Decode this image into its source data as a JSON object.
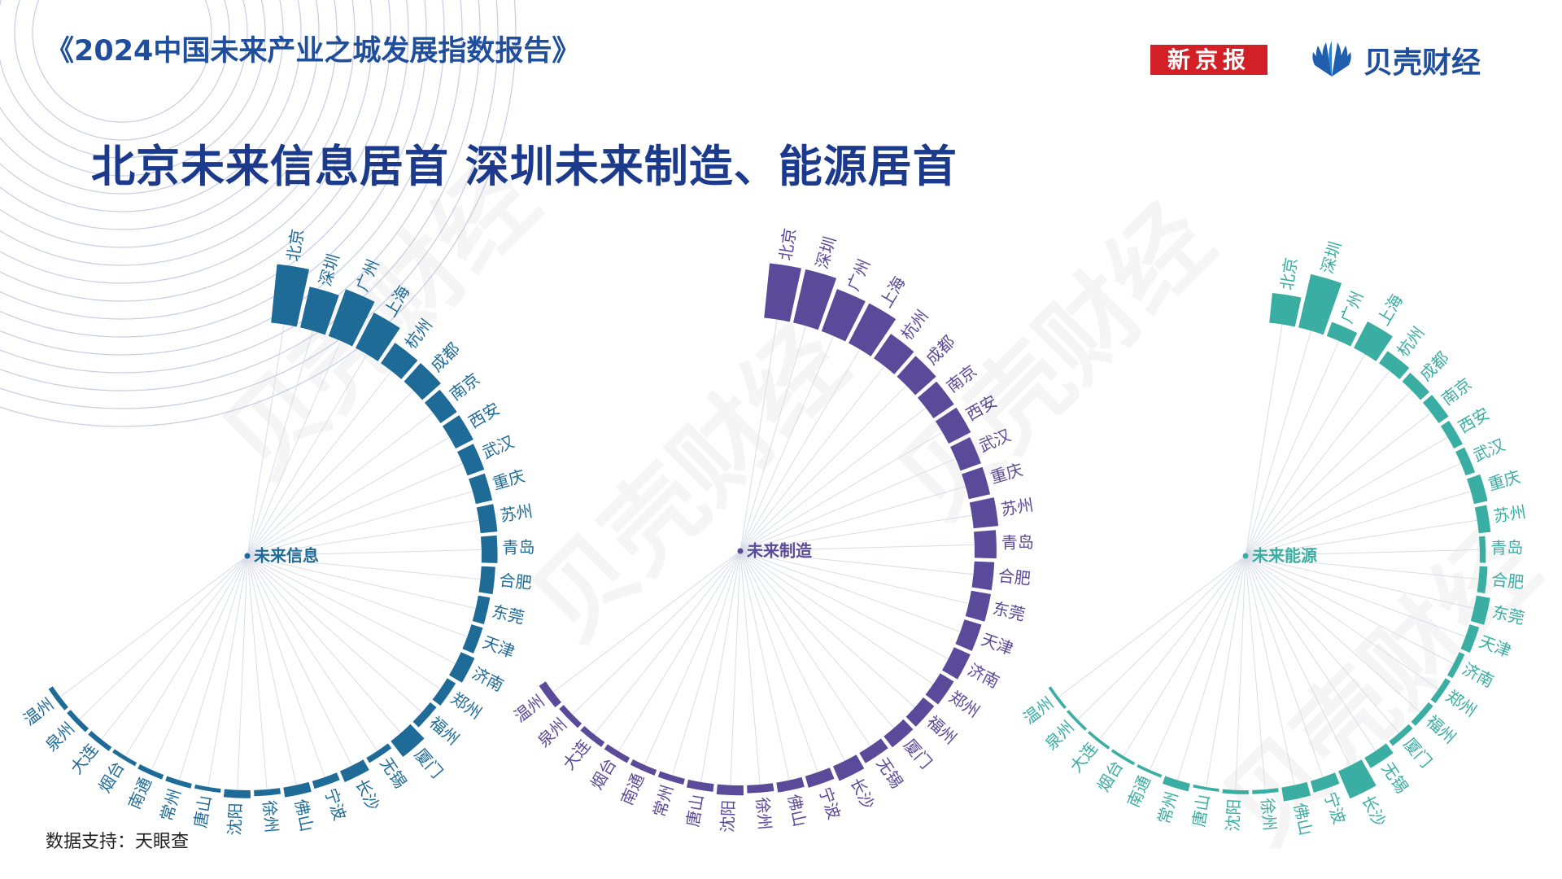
{
  "header": {
    "report_title": "《2024中国未来产业之城发展指数报告》",
    "headline": "北京未来信息居首 深圳未来制造、能源居首",
    "logo_xjb": "新京报",
    "logo_bk": "贝壳财经"
  },
  "footer": {
    "source": "数据支持：天眼查"
  },
  "watermark": "贝壳财经",
  "colors": {
    "info": "#1f6b98",
    "manufacturing": "#5b4a99",
    "energy": "#3aaea3",
    "title": "#1b3a8c",
    "xjb_red": "#d32027"
  },
  "chart_data": [
    {
      "type": "radial-bar",
      "title": "未来信息",
      "color": "#1f6b98",
      "categories": [
        "北京",
        "深圳",
        "广州",
        "上海",
        "杭州",
        "成都",
        "南京",
        "西安",
        "武汉",
        "重庆",
        "苏州",
        "青岛",
        "合肥",
        "东莞",
        "天津",
        "济南",
        "郑州",
        "福州",
        "厦门",
        "无锡",
        "长沙",
        "宁波",
        "佛山",
        "徐州",
        "沈阳",
        "唐山",
        "常州",
        "南通",
        "烟台",
        "大连",
        "泉州",
        "温州"
      ],
      "values": [
        59,
        42,
        50,
        40,
        25,
        25,
        20,
        20,
        18,
        17,
        17,
        16,
        14,
        12,
        12,
        15,
        10,
        8,
        20,
        6,
        12,
        8,
        10,
        6,
        8,
        4,
        5,
        5,
        4,
        5,
        5,
        5
      ]
    },
    {
      "type": "radial-bar",
      "title": "未来制造",
      "color": "#5b4a99",
      "categories": [
        "北京",
        "深圳",
        "广州",
        "上海",
        "杭州",
        "成都",
        "南京",
        "西安",
        "武汉",
        "重庆",
        "苏州",
        "青岛",
        "合肥",
        "东莞",
        "天津",
        "济南",
        "郑州",
        "福州",
        "厦门",
        "无锡",
        "长沙",
        "宁波",
        "佛山",
        "徐州",
        "沈阳",
        "唐山",
        "常州",
        "南通",
        "烟台",
        "大连",
        "泉州",
        "温州"
      ],
      "values": [
        55,
        55,
        45,
        45,
        30,
        28,
        25,
        25,
        22,
        22,
        25,
        22,
        20,
        20,
        18,
        18,
        16,
        14,
        14,
        12,
        16,
        12,
        10,
        8,
        10,
        8,
        6,
        6,
        6,
        6,
        6,
        8
      ]
    },
    {
      "type": "radial-bar",
      "title": "未来能源",
      "color": "#3aaea3",
      "categories": [
        "北京",
        "深圳",
        "广州",
        "上海",
        "杭州",
        "成都",
        "南京",
        "西安",
        "武汉",
        "重庆",
        "苏州",
        "青岛",
        "合肥",
        "东莞",
        "天津",
        "济南",
        "郑州",
        "福州",
        "厦门",
        "无锡",
        "长沙",
        "宁波",
        "佛山",
        "徐州",
        "沈阳",
        "唐山",
        "常州",
        "南通",
        "烟台",
        "大连",
        "泉州",
        "温州"
      ],
      "values": [
        30,
        55,
        15,
        30,
        15,
        12,
        12,
        10,
        10,
        14,
        12,
        6,
        8,
        14,
        10,
        6,
        6,
        6,
        6,
        12,
        30,
        12,
        14,
        4,
        4,
        3,
        8,
        3,
        3,
        3,
        3,
        3
      ]
    }
  ]
}
